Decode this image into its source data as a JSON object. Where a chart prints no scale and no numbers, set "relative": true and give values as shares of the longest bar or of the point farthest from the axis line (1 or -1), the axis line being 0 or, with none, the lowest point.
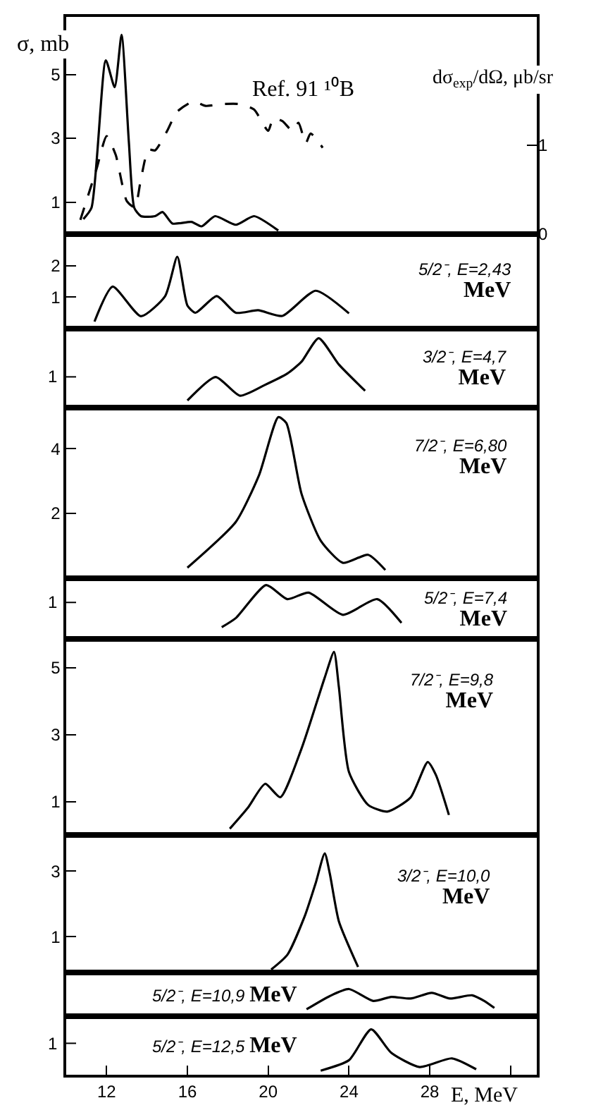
{
  "chart_data": [
    {
      "type": "line",
      "ylabel": "σ, mb",
      "y2label": "dσ$_{exp}$/dΩ, μb/sr",
      "annotations": [
        "Ref. 91 ¹⁰B"
      ],
      "xlim": [
        10,
        33.3
      ],
      "ylim": [
        0,
        6.8
      ],
      "yticks": [
        1,
        3,
        5
      ],
      "y2lim": [
        0,
        2.44
      ],
      "y2ticks": [
        0,
        1
      ],
      "tick_labels": "y",
      "series": [
        {
          "color": "#000000",
          "x": [
            10.85,
            11.25,
            11.96,
            12.4,
            12.74,
            13.1,
            13.37,
            13.7,
            14.4,
            14.77,
            15.26,
            16.2,
            16.7,
            17.37,
            18.4,
            19.3,
            20.5
          ],
          "values": [
            0.47,
            0.82,
            5.44,
            4.6,
            6.24,
            2.9,
            0.82,
            0.56,
            0.56,
            0.69,
            0.33,
            0.38,
            0.24,
            0.56,
            0.29,
            0.56,
            0.11
          ]
        },
        {
          "color": "#000000",
          "axis": "y2",
          "line_style": "dashed",
          "x": [
            10.7,
            11.5,
            12.0,
            12.45,
            13.0,
            13.4,
            13.7,
            14.07,
            14.4,
            15.0,
            15.47,
            16.3,
            16.9,
            17.7,
            18.6,
            19.3,
            20.0,
            20.25,
            20.7,
            21.2,
            21.5,
            21.86,
            22.1,
            22.7
          ],
          "values": [
            0.16,
            0.73,
            1.1,
            0.89,
            0.37,
            0.3,
            0.62,
            0.95,
            0.94,
            1.16,
            1.37,
            1.49,
            1.44,
            1.46,
            1.46,
            1.4,
            1.16,
            1.3,
            1.27,
            1.16,
            1.25,
            1.02,
            1.13,
            0.97
          ]
        }
      ]
    },
    {
      "type": "line",
      "annotations": [
        "5/2⁻, E=2,43 MeV"
      ],
      "xlim": [
        10,
        33.3
      ],
      "ylim": [
        0,
        3
      ],
      "yticks": [
        1,
        2
      ],
      "tick_labels": "y",
      "series": [
        {
          "color": "#000000",
          "x": [
            11.4,
            12.3,
            13.7,
            14.9,
            15.5,
            16.0,
            16.4,
            17.45,
            18.4,
            19.5,
            20.7,
            22.35,
            24.0
          ],
          "values": [
            0.22,
            1.33,
            0.39,
            1.03,
            2.28,
            0.73,
            0.5,
            1.03,
            0.5,
            0.58,
            0.4,
            1.2,
            0.48
          ]
        }
      ]
    },
    {
      "type": "line",
      "annotations": [
        "3/2⁻, E=4,7 MeV",
        "1"
      ],
      "xlim": [
        10,
        33.3
      ],
      "relative": true,
      "tick_labels": false,
      "series": [
        {
          "color": "#000000",
          "x": [
            16.0,
            17.4,
            18.6,
            19.8,
            20.95,
            21.65,
            22.5,
            23.5,
            24.8
          ],
          "values": [
            0.1,
            0.44,
            0.17,
            0.32,
            0.49,
            0.66,
            1.0,
            0.62,
            0.24
          ]
        }
      ]
    },
    {
      "type": "line",
      "annotations": [
        "7/2⁻, E=6,80 MeV"
      ],
      "xlim": [
        10,
        33.3
      ],
      "ylim": [
        0,
        5.28
      ],
      "yticks": [
        2,
        4
      ],
      "tick_labels": "y",
      "series": [
        {
          "color": "#000000",
          "x": [
            16.0,
            18.4,
            19.55,
            20.5,
            20.9,
            21.65,
            22.6,
            23.7,
            24.95,
            25.8
          ],
          "values": [
            0.32,
            1.74,
            3.19,
            4.98,
            4.8,
            2.61,
            1.16,
            0.47,
            0.72,
            0.25
          ]
        }
      ]
    },
    {
      "type": "line",
      "annotations": [
        "5/2⁻, E=7,4 MeV",
        "1"
      ],
      "xlim": [
        10,
        33.3
      ],
      "relative": true,
      "tick_labels": false,
      "series": [
        {
          "color": "#000000",
          "x": [
            17.7,
            18.4,
            19.9,
            20.95,
            22.0,
            23.7,
            25.4,
            26.6
          ],
          "values": [
            0.22,
            0.39,
            1.0,
            0.74,
            0.86,
            0.45,
            0.74,
            0.3
          ]
        }
      ]
    },
    {
      "type": "line",
      "annotations": [
        "7/2⁻, E=9,8 MeV"
      ],
      "xlim": [
        10,
        33.3
      ],
      "ylim": [
        0,
        5.85
      ],
      "yticks": [
        1,
        3,
        5
      ],
      "tick_labels": "y",
      "series": [
        {
          "color": "#000000",
          "x": [
            18.1,
            19.0,
            19.85,
            20.6,
            21.65,
            22.8,
            23.26,
            23.5,
            24.0,
            24.95,
            25.9,
            27.05,
            27.9,
            28.3,
            28.95
          ],
          "values": [
            0.19,
            0.82,
            1.53,
            1.13,
            2.58,
            4.7,
            5.47,
            4.42,
            1.88,
            0.9,
            0.7,
            1.12,
            2.18,
            1.8,
            0.6
          ]
        }
      ]
    },
    {
      "type": "line",
      "annotations": [
        "3/2⁻, E=10,0 MeV"
      ],
      "xlim": [
        10,
        33.3
      ],
      "ylim": [
        -0.1,
        4.1
      ],
      "yticks": [
        1,
        3
      ],
      "tick_labels": "y",
      "series": [
        {
          "color": "#000000",
          "x": [
            20.15,
            20.95,
            21.8,
            22.35,
            22.8,
            23.05,
            23.5,
            24.45
          ],
          "values": [
            0,
            0.45,
            1.61,
            2.63,
            3.54,
            2.93,
            1.47,
            0.08
          ]
        }
      ]
    },
    {
      "type": "line",
      "annotations": [
        "5/2⁻, E=10,9 MeV"
      ],
      "xlim": [
        10,
        33.3
      ],
      "relative": true,
      "tick_labels": false,
      "series": [
        {
          "color": "#000000",
          "x": [
            21.9,
            23.05,
            24.0,
            25.2,
            26.1,
            27.05,
            28.1,
            29.0,
            30.1,
            30.7,
            31.2
          ],
          "values": [
            0.25,
            0.74,
            1.0,
            0.56,
            0.71,
            0.65,
            0.86,
            0.65,
            0.77,
            0.56,
            0.3
          ]
        }
      ]
    },
    {
      "type": "line",
      "annotations": [
        "5/2⁻, E=12,5 MeV",
        "1"
      ],
      "xlabel": "E, MeV",
      "xlim": [
        10,
        33.3
      ],
      "relative": true,
      "tick_labels": "x",
      "xticks": [
        12,
        16,
        20,
        24,
        28,
        {
          "value": 32,
          "label": null
        }
      ],
      "series": [
        {
          "color": "#000000",
          "x": [
            22.6,
            24.0,
            25.1,
            26.1,
            27.5,
            29.1,
            30.3
          ],
          "values": [
            0.09,
            0.32,
            1.0,
            0.48,
            0.17,
            0.36,
            0.12
          ]
        }
      ]
    }
  ]
}
